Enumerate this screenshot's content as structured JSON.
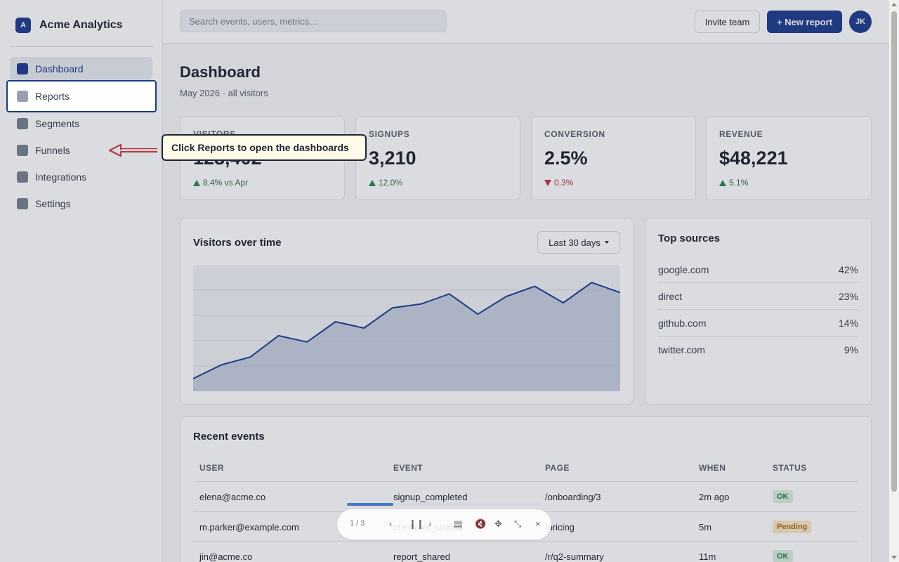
{
  "brand": {
    "logo_letter": "A",
    "name": "Acme Analytics"
  },
  "sidebar": {
    "items": [
      {
        "label": "Dashboard",
        "active": true
      },
      {
        "label": "Reports",
        "highlighted": true
      },
      {
        "label": "Segments"
      },
      {
        "label": "Funnels"
      },
      {
        "label": "Integrations"
      },
      {
        "label": "Settings"
      }
    ]
  },
  "topbar": {
    "search_placeholder": "Search events, users, metrics…",
    "invite_label": "Invite team",
    "new_report_label": "+ New report",
    "avatar_initials": "JK"
  },
  "page": {
    "title": "Dashboard",
    "subtitle": "May 2026 · all visitors"
  },
  "stats": [
    {
      "label": "VISITORS",
      "value": "128,402",
      "delta": "8.4% vs Apr",
      "direction": "up"
    },
    {
      "label": "SIGNUPS",
      "value": "3,210",
      "delta": "12.0%",
      "direction": "up"
    },
    {
      "label": "CONVERSION",
      "value": "2.5%",
      "delta": "0.3%",
      "direction": "down"
    },
    {
      "label": "REVENUE",
      "value": "$48,221",
      "delta": "5.1%",
      "direction": "up"
    }
  ],
  "visitors_chart": {
    "title": "Visitors over time",
    "range_label": "Last 30 days"
  },
  "chart_data": {
    "type": "area",
    "title": "Visitors over time",
    "x": [
      1,
      2,
      3,
      4,
      5,
      6,
      7,
      8,
      9,
      10,
      11,
      12,
      13,
      14,
      15,
      16
    ],
    "series": [
      {
        "values": [
          10,
          21,
          27,
          44,
          39,
          55,
          50,
          66,
          69,
          77,
          61,
          75,
          83,
          70,
          86,
          78
        ]
      }
    ],
    "ylim": [
      0,
      100
    ],
    "grid": true,
    "xlabel": "",
    "ylabel": ""
  },
  "top_sources": {
    "title": "Top sources",
    "items": [
      {
        "name": "google.com",
        "share": "42%"
      },
      {
        "name": "direct",
        "share": "23%"
      },
      {
        "name": "github.com",
        "share": "14%"
      },
      {
        "name": "twitter.com",
        "share": "9%"
      }
    ]
  },
  "recent_events": {
    "title": "Recent events",
    "columns": [
      "USER",
      "EVENT",
      "PAGE",
      "WHEN",
      "STATUS"
    ],
    "rows": [
      {
        "user": "elena@acme.co",
        "event": "signup_completed",
        "page": "/onboarding/3",
        "when": "2m ago",
        "status": "OK"
      },
      {
        "user": "m.parker@example.com",
        "event": "checkout_started",
        "page": "/pricing",
        "when": "5m",
        "status": "Pending"
      },
      {
        "user": "jin@acme.co",
        "event": "report_shared",
        "page": "/r/q2-summary",
        "when": "11m",
        "status": "OK"
      }
    ]
  },
  "tooltip": {
    "text": "Click Reports to open the dashboards"
  },
  "player": {
    "position": "1 / 3",
    "progress": 0.24
  },
  "colors": {
    "accent": "#1f3f8f",
    "up": "#2f8a4f",
    "down": "#c9324a"
  }
}
